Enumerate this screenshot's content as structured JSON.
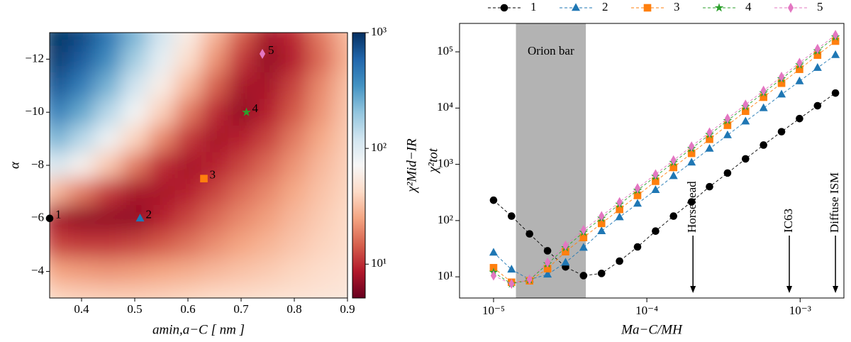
{
  "chart_data": [
    {
      "type": "heatmap",
      "xlabel": "amin,a−C [ nm ]",
      "ylabel": "α",
      "colorbar_label": "χ²Mid−IR",
      "x": [
        0.35,
        0.4,
        0.45,
        0.5,
        0.55,
        0.6,
        0.65,
        0.7,
        0.75,
        0.8,
        0.85,
        0.9
      ],
      "y": [
        -13,
        -12,
        -11,
        -10,
        -9,
        -8,
        -7,
        -6,
        -5,
        -4,
        -3
      ],
      "values": [
        [
          1000,
          800,
          500,
          250,
          120,
          60,
          30,
          15,
          8,
          10,
          18,
          30
        ],
        [
          900,
          650,
          380,
          180,
          90,
          45,
          22,
          11,
          7,
          9,
          16,
          28
        ],
        [
          700,
          450,
          250,
          120,
          60,
          30,
          15,
          8,
          8,
          12,
          20,
          32
        ],
        [
          450,
          280,
          150,
          75,
          38,
          18,
          10,
          7,
          9,
          14,
          22,
          34
        ],
        [
          250,
          150,
          80,
          40,
          20,
          11,
          8,
          9,
          12,
          18,
          26,
          36
        ],
        [
          110,
          65,
          35,
          18,
          10,
          8,
          9,
          12,
          16,
          22,
          30,
          38
        ],
        [
          30,
          18,
          11,
          8,
          8,
          9,
          12,
          16,
          20,
          26,
          33,
          40
        ],
        [
          8,
          7,
          7,
          7,
          9,
          12,
          16,
          20,
          24,
          30,
          36,
          42
        ],
        [
          12,
          11,
          11,
          12,
          14,
          17,
          21,
          25,
          29,
          34,
          39,
          44
        ],
        [
          25,
          23,
          22,
          23,
          25,
          27,
          30,
          33,
          36,
          40,
          44,
          48
        ],
        [
          40,
          38,
          37,
          37,
          38,
          40,
          42,
          44,
          46,
          48,
          50,
          52
        ]
      ],
      "xlim": [
        0.34,
        0.9
      ],
      "ylim": [
        -3,
        -13
      ],
      "xticks": [
        0.4,
        0.5,
        0.6,
        0.7,
        0.8,
        0.9
      ],
      "yticks": [
        {
          "value": -4,
          "label": "−4"
        },
        {
          "value": -6,
          "label": "−6"
        },
        {
          "value": -8,
          "label": "−8"
        },
        {
          "value": -10,
          "label": "−10"
        },
        {
          "value": -12,
          "label": "−12"
        }
      ],
      "zscale": "log",
      "zlim": [
        5.1,
        1000
      ],
      "zticks": [
        {
          "value": 10,
          "label": "10¹"
        },
        {
          "value": 100,
          "label": "10²"
        },
        {
          "value": 1000,
          "label": "10³"
        }
      ],
      "colormap": [
        "#67001f",
        "#b2182b",
        "#d6604d",
        "#f4a582",
        "#fddbc7",
        "#f7f7f7",
        "#d1e5f0",
        "#92c5de",
        "#4393c3",
        "#2166ac",
        "#053061"
      ],
      "points": [
        {
          "label": "1",
          "x": 0.34,
          "y": -6,
          "color": "#000000",
          "marker": "circle"
        },
        {
          "label": "2",
          "x": 0.51,
          "y": -6,
          "color": "#1f77b4",
          "marker": "triangle"
        },
        {
          "label": "3",
          "x": 0.63,
          "y": -7.5,
          "color": "#ff7f0e",
          "marker": "square"
        },
        {
          "label": "4",
          "x": 0.71,
          "y": -10,
          "color": "#2ca02c",
          "marker": "star"
        },
        {
          "label": "5",
          "x": 0.74,
          "y": -12.2,
          "color": "#e377c2",
          "marker": "diamond"
        }
      ]
    },
    {
      "type": "line",
      "xscale": "log",
      "yscale": "log",
      "xlabel": "Ma−C/MH",
      "ylabel": "χ²tot",
      "x": [
        1e-05,
        1.31e-05,
        1.717e-05,
        2.25e-05,
        2.949e-05,
        3.864e-05,
        5.064e-05,
        6.636e-05,
        8.696e-05,
        0.000114,
        0.0001493,
        0.0001957,
        0.0002564,
        0.0003361,
        0.0004404,
        0.0005771,
        0.0007562,
        0.000991,
        0.001299,
        0.0017
      ],
      "series": [
        {
          "name": "1",
          "color": "#000000",
          "marker": "circle",
          "values": [
            230,
            120,
            58,
            29,
            15,
            10.5,
            11.5,
            19,
            34,
            65,
            120,
            215,
            400,
            700,
            1250,
            2200,
            3800,
            6500,
            11000,
            18500
          ]
        },
        {
          "name": "2",
          "color": "#1f77b4",
          "marker": "triangle",
          "values": [
            27,
            13.5,
            9,
            11,
            18,
            33,
            65,
            115,
            200,
            350,
            620,
            1080,
            1900,
            3300,
            5800,
            10000,
            17500,
            30000,
            52000,
            88000
          ]
        },
        {
          "name": "3",
          "color": "#ff7f0e",
          "marker": "square",
          "values": [
            14.5,
            8,
            8.5,
            14,
            28,
            50,
            89,
            158,
            280,
            500,
            880,
            1570,
            2790,
            4950,
            8800,
            15600,
            27700,
            49000,
            87500,
            155000
          ]
        },
        {
          "name": "4",
          "color": "#2ca02c",
          "marker": "star",
          "values": [
            12,
            7.5,
            8.8,
            17,
            33,
            62,
            110,
            195,
            345,
            610,
            1080,
            1910,
            3380,
            5980,
            10600,
            18700,
            33100,
            58600,
            104000,
            184000
          ]
        },
        {
          "name": "5",
          "color": "#e377c2",
          "marker": "diamond",
          "values": [
            10.5,
            7.5,
            9,
            18,
            36,
            68,
            120,
            213,
            376,
            666,
            1180,
            2085,
            3690,
            6530,
            11550,
            20400,
            36100,
            63900,
            113000,
            200000
          ]
        }
      ],
      "xlim": [
        6e-06,
        0.00193
      ],
      "ylim": [
        4.2,
        320000
      ],
      "xticks": [
        {
          "value": 1e-05,
          "label": "10⁻⁵"
        },
        {
          "value": 0.0001,
          "label": "10⁻⁴"
        },
        {
          "value": 0.001,
          "label": "10⁻³"
        }
      ],
      "yticks": [
        {
          "value": 10,
          "label": "10¹"
        },
        {
          "value": 100,
          "label": "10²"
        },
        {
          "value": 1000,
          "label": "10³"
        },
        {
          "value": 10000,
          "label": "10⁴"
        },
        {
          "value": 100000,
          "label": "10⁵"
        }
      ],
      "legend": "top",
      "shaded": {
        "label": "Orion bar",
        "x": [
          1.4e-05,
          4e-05
        ],
        "color": "#b3b3b3"
      },
      "annotations": [
        {
          "text": "Horsehead",
          "x": 0.0002
        },
        {
          "text": "IC63",
          "x": 0.00085
        },
        {
          "text": "Diffuse ISM",
          "x": 0.0017
        }
      ]
    }
  ]
}
